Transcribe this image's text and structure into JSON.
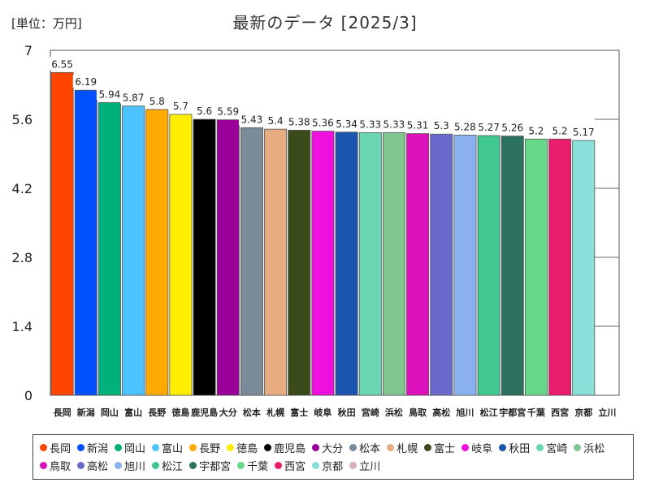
{
  "header": {
    "unit_label": "[単位：万円]",
    "title": "最新のデータ [2025/3]"
  },
  "chart_data": {
    "type": "bar",
    "title": "最新のデータ [2025/3]",
    "unit": "[単位：万円]",
    "ylim": [
      0,
      7
    ],
    "yticks": [
      "0",
      "1.4",
      "2.8",
      "4.2",
      "5.6",
      "7"
    ],
    "grid": false,
    "legend_position": "bottom",
    "categories": [
      "長岡",
      "新潟",
      "岡山",
      "富山",
      "長野",
      "徳島",
      "鹿児島",
      "大分",
      "松本",
      "札幌",
      "富士",
      "岐阜",
      "秋田",
      "宮崎",
      "浜松",
      "鳥取",
      "高松",
      "旭川",
      "松江",
      "宇都宮",
      "千葉",
      "西宮",
      "京都",
      "立川"
    ],
    "values": [
      6.55,
      6.19,
      5.94,
      5.87,
      5.8,
      5.7,
      5.6,
      5.59,
      5.43,
      5.4,
      5.38,
      5.36,
      5.34,
      5.33,
      5.33,
      5.31,
      5.3,
      5.28,
      5.27,
      5.26,
      5.2,
      5.2,
      5.17,
      null
    ],
    "value_labels": [
      "6.55",
      "6.19",
      "5.94",
      "5.87",
      "5.8",
      "5.7",
      "5.6",
      "5.59",
      "5.43",
      "5.4",
      "5.38",
      "5.36",
      "5.34",
      "5.33",
      "5.33",
      "5.31",
      "5.3",
      "5.28",
      "5.27",
      "5.26",
      "5.2",
      "5.2",
      "5.17",
      ""
    ],
    "colors": [
      "#ff4500",
      "#0050ff",
      "#00b07a",
      "#4cc3ff",
      "#ffaa00",
      "#ffee00",
      "#000000",
      "#990099",
      "#7a8a99",
      "#e8ac82",
      "#3a4a1a",
      "#ee11dd",
      "#1a55b0",
      "#6ad6b2",
      "#80c490",
      "#dd11bb",
      "#6a6acc",
      "#8ab0f0",
      "#40c890",
      "#2c7060",
      "#66d888",
      "#e81e6a",
      "#88e0d8",
      "#d8b0c0"
    ]
  }
}
